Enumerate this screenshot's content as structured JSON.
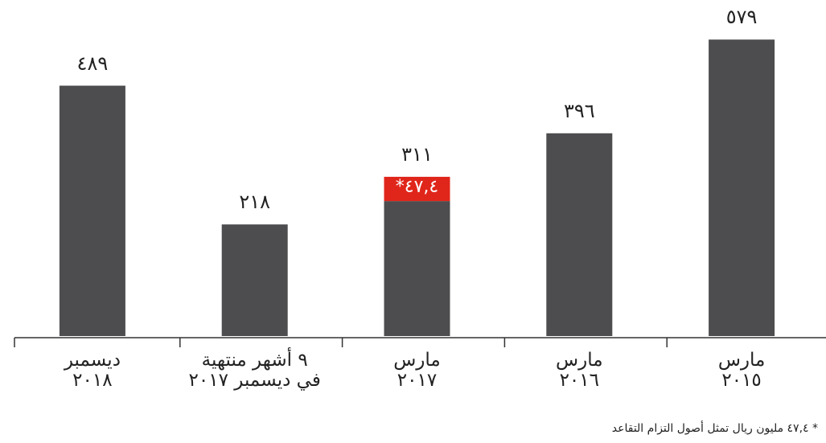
{
  "chart_data": {
    "type": "bar",
    "categories": [
      "مارس\n٢٠١٥",
      "مارس\n٢٠١٦",
      "مارس\n٢٠١٧",
      "٩ أشهر منتهية\nفي ديسمبر ٢٠١٧",
      "ديسمبر\n٢٠١٨"
    ],
    "series": [
      {
        "color": "#4d4d4f",
        "values": [
          579,
          396,
          263.6,
          218,
          489
        ]
      },
      {
        "color": "#e0261b",
        "values": [
          null,
          null,
          47.4,
          null,
          null
        ],
        "value_labels": [
          null,
          null,
          "٤٧,٤*",
          null,
          null
        ]
      }
    ],
    "totals": [
      579,
      396,
      311,
      218,
      489
    ],
    "total_labels": [
      "٥٧٩",
      "٣٩٦",
      "٣١١",
      "٢١٨",
      "٤٨٩"
    ],
    "ylim": [
      0,
      650
    ],
    "footnote": "* ٤٧,٤ مليون ريال تمثل أصول التزام التقاعد"
  }
}
